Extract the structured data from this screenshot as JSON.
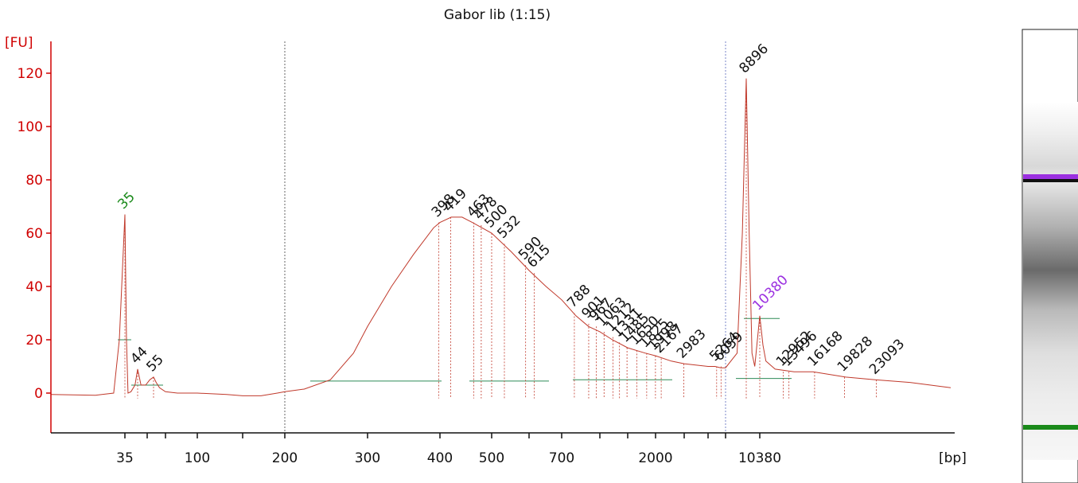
{
  "colors": {
    "axis": "#d00000",
    "trace": "#c0392b",
    "marker_lower": "#1a8a1a",
    "marker_upper": "#9b30e0",
    "peak_label": "#111111",
    "baseline": "#2e8b57",
    "vline_left": "#666666",
    "vline_right": "#7a85c9"
  },
  "chart_data": {
    "type": "line",
    "title": "Gabor lib (1:15)",
    "ylabel": "[FU]",
    "xlabel": "[bp]",
    "ylim": [
      -13,
      130
    ],
    "yticks": [
      0,
      20,
      40,
      60,
      80,
      100,
      120
    ],
    "x_scale": "ladder (non-linear bp)",
    "xticks": [
      {
        "label": "35",
        "bp": 35
      },
      {
        "label": "",
        "bp": 50
      },
      {
        "label": "",
        "bp": 70
      },
      {
        "label": "100",
        "bp": 100
      },
      {
        "label": "",
        "bp": 150
      },
      {
        "label": "200",
        "bp": 200
      },
      {
        "label": "300",
        "bp": 300
      },
      {
        "label": "400",
        "bp": 400
      },
      {
        "label": "500",
        "bp": 500
      },
      {
        "label": "",
        "bp": 600
      },
      {
        "label": "700",
        "bp": 700
      },
      {
        "label": "",
        "bp": 1000
      },
      {
        "label": "",
        "bp": 1500
      },
      {
        "label": "2000",
        "bp": 2000
      },
      {
        "label": "",
        "bp": 3000
      },
      {
        "label": "",
        "bp": 4000
      },
      {
        "label": "",
        "bp": 7000
      },
      {
        "label": "10380",
        "bp": 10380
      }
    ],
    "grid": false,
    "trace_points": [
      [
        25,
        -0.5
      ],
      [
        30,
        -0.8
      ],
      [
        33,
        0
      ],
      [
        34,
        20
      ],
      [
        35,
        67
      ],
      [
        36,
        20
      ],
      [
        37,
        0
      ],
      [
        39,
        0.5
      ],
      [
        42,
        3
      ],
      [
        44,
        9
      ],
      [
        46,
        3
      ],
      [
        49,
        3
      ],
      [
        52,
        5
      ],
      [
        55,
        6
      ],
      [
        58,
        4
      ],
      [
        62,
        2
      ],
      [
        70,
        0.5
      ],
      [
        80,
        0
      ],
      [
        100,
        0
      ],
      [
        130,
        -0.5
      ],
      [
        150,
        -1
      ],
      [
        170,
        -1
      ],
      [
        190,
        0
      ],
      [
        200,
        0.5
      ],
      [
        220,
        1.5
      ],
      [
        250,
        5
      ],
      [
        280,
        15
      ],
      [
        300,
        25
      ],
      [
        330,
        40
      ],
      [
        360,
        52
      ],
      [
        390,
        62
      ],
      [
        400,
        64
      ],
      [
        420,
        66
      ],
      [
        440,
        66
      ],
      [
        460,
        64
      ],
      [
        500,
        60
      ],
      [
        550,
        53
      ],
      [
        600,
        46
      ],
      [
        650,
        40
      ],
      [
        700,
        35
      ],
      [
        800,
        29
      ],
      [
        900,
        25
      ],
      [
        1000,
        23
      ],
      [
        1200,
        20
      ],
      [
        1500,
        17
      ],
      [
        1800,
        15
      ],
      [
        2000,
        14
      ],
      [
        2500,
        12
      ],
      [
        3000,
        11
      ],
      [
        4000,
        10
      ],
      [
        5000,
        10
      ],
      [
        6000,
        9.5
      ],
      [
        7000,
        9.5
      ],
      [
        8000,
        15
      ],
      [
        8500,
        60
      ],
      [
        8896,
        118
      ],
      [
        9200,
        60
      ],
      [
        9500,
        15
      ],
      [
        9800,
        10
      ],
      [
        10380,
        29
      ],
      [
        10700,
        18
      ],
      [
        11000,
        12
      ],
      [
        12000,
        9
      ],
      [
        14000,
        8
      ],
      [
        16000,
        8
      ],
      [
        20000,
        6
      ],
      [
        23000,
        5
      ],
      [
        26000,
        4
      ],
      [
        30000,
        2
      ]
    ],
    "markers": [
      {
        "bp": 35,
        "fu": 67,
        "label": "35",
        "role": "lower"
      },
      {
        "bp": 10380,
        "fu": 29,
        "label": "10380",
        "role": "upper"
      }
    ],
    "peaks": [
      {
        "bp": 44,
        "fu": 9,
        "label": "44"
      },
      {
        "bp": 55,
        "fu": 6,
        "label": "55"
      },
      {
        "bp": 398,
        "fu": 64,
        "label": "398"
      },
      {
        "bp": 419,
        "fu": 66,
        "label": "419"
      },
      {
        "bp": 463,
        "fu": 64,
        "label": "463"
      },
      {
        "bp": 478,
        "fu": 63,
        "label": "478"
      },
      {
        "bp": 500,
        "fu": 60,
        "label": "500"
      },
      {
        "bp": 532,
        "fu": 56,
        "label": "532"
      },
      {
        "bp": 590,
        "fu": 48,
        "label": "590"
      },
      {
        "bp": 615,
        "fu": 45,
        "label": "615"
      },
      {
        "bp": 788,
        "fu": 30,
        "label": "788"
      },
      {
        "bp": 901,
        "fu": 26,
        "label": "901"
      },
      {
        "bp": 967,
        "fu": 25,
        "label": "967"
      },
      {
        "bp": 1063,
        "fu": 23,
        "label": "1063"
      },
      {
        "bp": 1212,
        "fu": 21,
        "label": "1212"
      },
      {
        "bp": 1331,
        "fu": 19,
        "label": "1331"
      },
      {
        "bp": 1485,
        "fu": 17,
        "label": "1485"
      },
      {
        "bp": 1650,
        "fu": 16,
        "label": "1650"
      },
      {
        "bp": 1825,
        "fu": 15,
        "label": "1825"
      },
      {
        "bp": 1998,
        "fu": 14,
        "label": "1998"
      },
      {
        "bp": 2167,
        "fu": 13,
        "label": "2167"
      },
      {
        "bp": 2983,
        "fu": 11,
        "label": "2983"
      },
      {
        "bp": 5264,
        "fu": 10,
        "label": "5264"
      },
      {
        "bp": 6059,
        "fu": 10,
        "label": "6059"
      },
      {
        "bp": 8896,
        "fu": 118,
        "label": "8896"
      },
      {
        "bp": 12952,
        "fu": 8,
        "label": "12952"
      },
      {
        "bp": 13496,
        "fu": 8,
        "label": "13496"
      },
      {
        "bp": 16168,
        "fu": 8,
        "label": "16168"
      },
      {
        "bp": 19828,
        "fu": 6,
        "label": "19828"
      },
      {
        "bp": 23093,
        "fu": 5,
        "label": "23093"
      }
    ],
    "region_boundaries_bp": [
      200,
      7000
    ]
  },
  "gel": {
    "bands": [
      {
        "bp": 10380,
        "color": "#9b30e0",
        "role": "upper marker"
      },
      {
        "bp": 8896,
        "color": "#111111",
        "role": "peak"
      },
      {
        "bp": 35,
        "color": "#1a8a1a",
        "role": "lower marker"
      }
    ]
  }
}
